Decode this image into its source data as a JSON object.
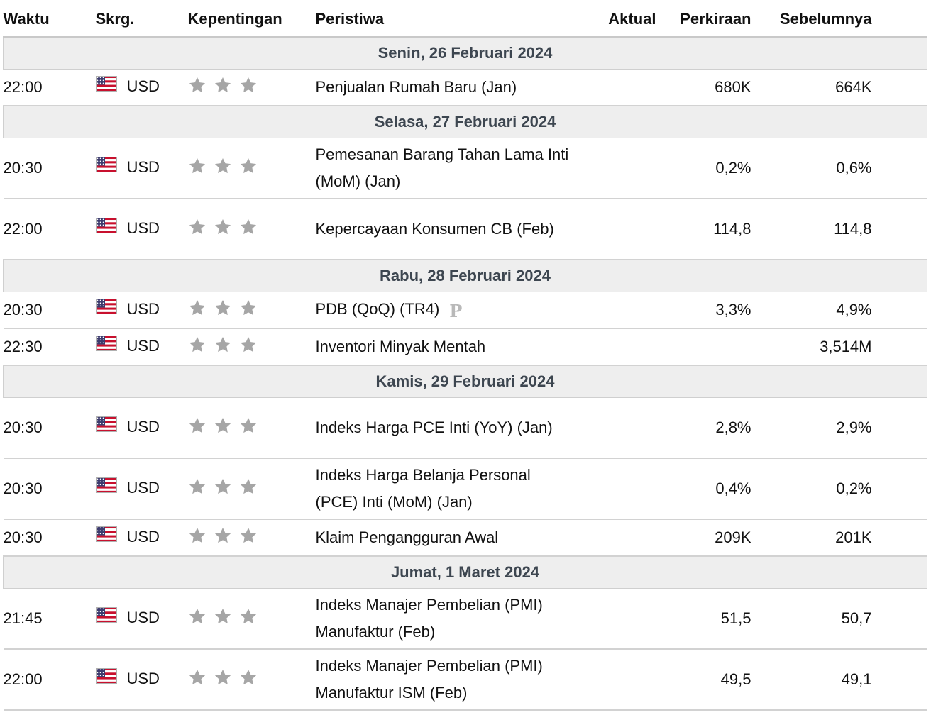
{
  "headers": {
    "time": "Waktu",
    "currency": "Skrg.",
    "importance": "Kepentingan",
    "event": "Peristiwa",
    "actual": "Aktual",
    "forecast": "Perkiraan",
    "previous": "Sebelumnya"
  },
  "icons": {
    "flag": "us-flag-icon",
    "star": "star-icon",
    "preliminary": "preliminary-icon"
  },
  "colors": {
    "star": "#a6a6a6",
    "day_row_bg": "#eeeeee",
    "day_row_text": "#3d4650"
  },
  "days": [
    {
      "label": "Senin, 26 Februari 2024",
      "events": [
        {
          "time": "22:00",
          "currency": "USD",
          "stars": 3,
          "name": "Penjualan Rumah Baru (Jan)",
          "actual": "",
          "forecast": "680K",
          "previous": "664K"
        }
      ]
    },
    {
      "label": "Selasa, 27 Februari 2024",
      "events": [
        {
          "time": "20:30",
          "currency": "USD",
          "stars": 3,
          "name": "Pemesanan Barang Tahan Lama Inti (MoM) (Jan)",
          "actual": "",
          "forecast": "0,2%",
          "previous": "0,6%"
        },
        {
          "time": "22:00",
          "currency": "USD",
          "stars": 3,
          "name": "Kepercayaan Konsumen CB (Feb)",
          "actual": "",
          "forecast": "114,8",
          "previous": "114,8"
        }
      ]
    },
    {
      "label": "Rabu, 28 Februari 2024",
      "events": [
        {
          "time": "20:30",
          "currency": "USD",
          "stars": 3,
          "name": "PDB (QoQ) (TR4)",
          "badge": "P",
          "actual": "",
          "forecast": "3,3%",
          "previous": "4,9%"
        },
        {
          "time": "22:30",
          "currency": "USD",
          "stars": 3,
          "name": "Inventori Minyak Mentah",
          "actual": "",
          "forecast": "",
          "previous": "3,514M"
        }
      ]
    },
    {
      "label": "Kamis, 29 Februari 2024",
      "events": [
        {
          "time": "20:30",
          "currency": "USD",
          "stars": 3,
          "name": "Indeks Harga PCE Inti (YoY) (Jan)",
          "actual": "",
          "forecast": "2,8%",
          "previous": "2,9%"
        },
        {
          "time": "20:30",
          "currency": "USD",
          "stars": 3,
          "name": "Indeks Harga Belanja Personal (PCE) Inti (MoM) (Jan)",
          "actual": "",
          "forecast": "0,4%",
          "previous": "0,2%"
        },
        {
          "time": "20:30",
          "currency": "USD",
          "stars": 3,
          "name": "Klaim Pengangguran Awal",
          "actual": "",
          "forecast": "209K",
          "previous": "201K"
        }
      ]
    },
    {
      "label": "Jumat, 1 Maret 2024",
      "events": [
        {
          "time": "21:45",
          "currency": "USD",
          "stars": 3,
          "name": "Indeks Manajer Pembelian (PMI) Manufaktur (Feb)",
          "actual": "",
          "forecast": "51,5",
          "previous": "50,7"
        },
        {
          "time": "22:00",
          "currency": "USD",
          "stars": 3,
          "name": "Indeks Manajer Pembelian (PMI) Manufaktur ISM (Feb)",
          "actual": "",
          "forecast": "49,5",
          "previous": "49,1"
        }
      ]
    }
  ]
}
